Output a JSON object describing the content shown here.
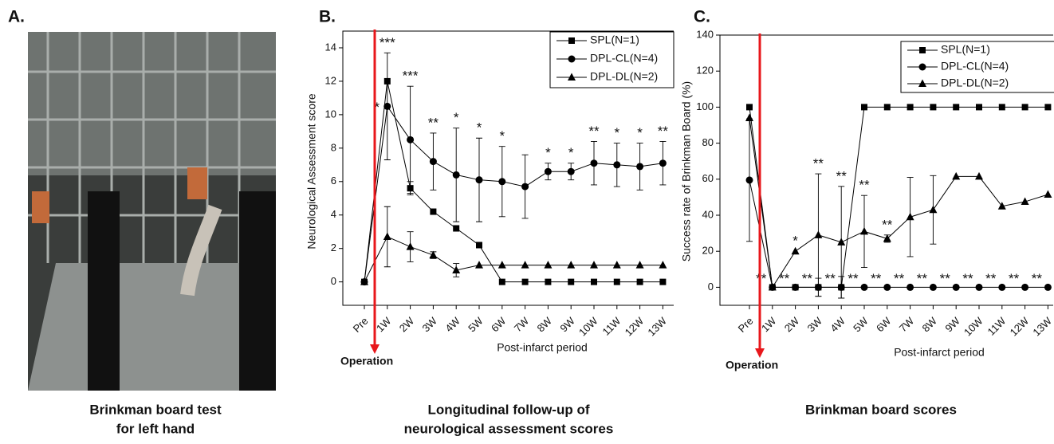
{
  "figure": {
    "panel_a": {
      "label": "A.",
      "caption": [
        "Brinkman board test",
        "for left hand"
      ]
    },
    "annotation": "Operation"
  },
  "chart_data": [
    {
      "type": "line",
      "panel_label": "B.",
      "caption": [
        "Longitudinal follow-up of",
        "neurological assessment scores"
      ],
      "x_label": "Post-infarct period",
      "y_label": "Neurological Assessment score",
      "categories": [
        "Pre",
        "1W",
        "2W",
        "3W",
        "4W",
        "5W",
        "6W",
        "7W",
        "8W",
        "9W",
        "10W",
        "11W",
        "12W",
        "13W"
      ],
      "series": [
        {
          "name": "SPL(N=1)",
          "color": "#000000",
          "marker": "square",
          "values": [
            0,
            12,
            5.6,
            4.2,
            3.2,
            2.2,
            0,
            0,
            0,
            0,
            0,
            0,
            0,
            0
          ],
          "errors": [
            null,
            null,
            0.4,
            null,
            null,
            null,
            null,
            null,
            null,
            null,
            null,
            null,
            null,
            null
          ]
        },
        {
          "name": "DPL-CL(N=4)",
          "color": "#000000",
          "marker": "circle",
          "values": [
            0,
            10.5,
            8.5,
            7.2,
            6.4,
            6.1,
            6.0,
            5.7,
            6.6,
            6.6,
            7.1,
            7.0,
            6.9,
            7.1
          ],
          "errors": [
            null,
            3.2,
            3.2,
            1.7,
            2.8,
            2.5,
            2.1,
            1.9,
            0.5,
            0.5,
            1.3,
            1.3,
            1.4,
            1.3
          ]
        },
        {
          "name": "DPL-DL(N=2)",
          "color": "#000000",
          "marker": "triangle",
          "values": [
            0,
            2.7,
            2.1,
            1.6,
            0.7,
            1.0,
            1.0,
            1.0,
            1.0,
            1.0,
            1.0,
            1.0,
            1.0,
            1.0
          ],
          "errors": [
            null,
            1.8,
            0.9,
            0.2,
            0.4,
            null,
            null,
            null,
            null,
            null,
            null,
            null,
            null,
            null
          ]
        }
      ],
      "significance": [
        null,
        "***",
        "***",
        "**",
        "*",
        "*",
        "*",
        null,
        "*",
        "*",
        "**",
        "*",
        "*",
        "**"
      ],
      "significance_left": [
        null,
        "*",
        null,
        null,
        null,
        null,
        null,
        null,
        null,
        null,
        null,
        null,
        null,
        null
      ],
      "ylim": [
        -1.4,
        15
      ],
      "yticks": [
        0,
        2,
        4,
        6,
        8,
        10,
        12,
        14
      ]
    },
    {
      "type": "line",
      "panel_label": "C.",
      "caption": [
        "Brinkman board scores"
      ],
      "x_label": "Post-infarct period",
      "y_label": "Success rate of Brinkman Board (%)",
      "categories": [
        "Pre",
        "1W",
        "2W",
        "3W",
        "4W",
        "5W",
        "6W",
        "7W",
        "8W",
        "9W",
        "10W",
        "11W",
        "12W",
        "13W"
      ],
      "series": [
        {
          "name": "SPL(N=1)",
          "color": "#000000",
          "marker": "square",
          "values": [
            100,
            0,
            0,
            0,
            0,
            100,
            100,
            100,
            100,
            100,
            100,
            100,
            100,
            100
          ],
          "errors": [
            null,
            null,
            null,
            null,
            null,
            null,
            null,
            null,
            null,
            null,
            null,
            null,
            null,
            null
          ]
        },
        {
          "name": "DPL-CL(N=4)",
          "color": "#000000",
          "marker": "circle",
          "values": [
            59.5,
            0,
            0,
            0,
            0,
            0,
            0,
            0,
            0,
            0,
            0,
            0,
            0,
            0
          ],
          "errors": [
            34,
            null,
            null,
            5,
            6,
            null,
            null,
            null,
            null,
            null,
            null,
            null,
            null,
            null
          ]
        },
        {
          "name": "DPL-DL(N=2)",
          "color": "#000000",
          "marker": "triangle",
          "values": [
            94,
            0,
            20,
            29,
            25,
            31,
            27,
            39,
            43,
            61.5,
            61.5,
            45,
            47.5,
            51.5
          ],
          "errors": [
            null,
            null,
            null,
            34,
            31,
            20,
            2,
            22,
            19,
            null,
            null,
            null,
            null,
            null
          ]
        }
      ],
      "significance": [
        null,
        null,
        "*",
        "**",
        "**",
        "**",
        "**",
        null,
        null,
        null,
        null,
        null,
        null,
        null
      ],
      "significance_row": [
        null,
        "**",
        "**",
        "**",
        "**",
        "**",
        "**",
        "**",
        "**",
        "**",
        "**",
        "**",
        "**",
        "**"
      ],
      "ylim": [
        -10,
        140
      ],
      "yticks": [
        0,
        20,
        40,
        60,
        80,
        100,
        120,
        140
      ]
    }
  ]
}
